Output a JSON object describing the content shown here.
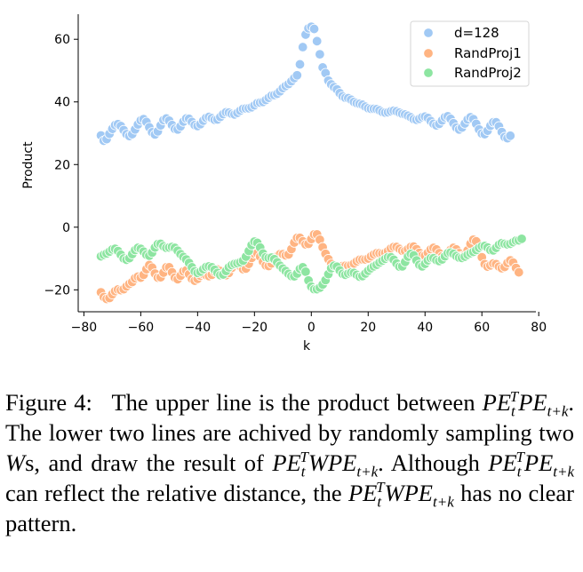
{
  "chart_data": {
    "type": "scatter",
    "xlabel": "k",
    "ylabel": "Product",
    "xlim": [
      -82,
      79
    ],
    "ylim": [
      -27,
      68
    ],
    "xticks": [
      -80,
      -60,
      -40,
      -20,
      0,
      20,
      40,
      60,
      80
    ],
    "xtick_labels": [
      "−80",
      "−60",
      "−40",
      "−20",
      "0",
      "20",
      "40",
      "60",
      "80"
    ],
    "yticks": [
      -20,
      0,
      20,
      40,
      60
    ],
    "ytick_labels": [
      "−20",
      "0",
      "20",
      "40",
      "60"
    ],
    "legend_position": "top-right",
    "x": [
      -74,
      -73,
      -72,
      -71,
      -70,
      -69,
      -68,
      -67,
      -66,
      -65,
      -64,
      -63,
      -62,
      -61,
      -60,
      -59,
      -58,
      -57,
      -56,
      -55,
      -54,
      -53,
      -52,
      -51,
      -50,
      -49,
      -48,
      -47,
      -46,
      -45,
      -44,
      -43,
      -42,
      -41,
      -40,
      -39,
      -38,
      -37,
      -36,
      -35,
      -34,
      -33,
      -32,
      -31,
      -30,
      -29,
      -28,
      -27,
      -26,
      -25,
      -24,
      -23,
      -22,
      -21,
      -20,
      -19,
      -18,
      -17,
      -16,
      -15,
      -14,
      -13,
      -12,
      -11,
      -10,
      -9,
      -8,
      -7,
      -6,
      -5,
      -4,
      -3,
      -2,
      -1,
      0,
      1,
      2,
      3,
      4,
      5,
      6,
      7,
      8,
      9,
      10,
      11,
      12,
      13,
      14,
      15,
      16,
      17,
      18,
      19,
      20,
      21,
      22,
      23,
      24,
      25,
      26,
      27,
      28,
      29,
      30,
      31,
      32,
      33,
      34,
      35,
      36,
      37,
      38,
      39,
      40,
      41,
      42,
      43,
      44,
      45,
      46,
      47,
      48,
      49,
      50,
      51,
      52,
      53,
      54,
      55,
      56,
      57,
      58,
      59,
      60,
      61,
      62,
      63,
      64,
      65,
      66,
      67,
      68,
      69,
      70,
      71,
      72,
      73,
      74
    ],
    "series": [
      {
        "name": "d=128",
        "color": "#a1c9f4",
        "values": [
          29.3,
          27.6,
          28.1,
          29.8,
          31.4,
          32.6,
          32.9,
          32.3,
          31.0,
          29.7,
          29.1,
          29.7,
          31.2,
          32.8,
          34.1,
          34.5,
          33.6,
          31.9,
          30.3,
          29.6,
          30.6,
          32.5,
          34.2,
          34.7,
          34.0,
          32.6,
          31.4,
          31.2,
          32.2,
          33.7,
          34.7,
          34.6,
          33.6,
          32.6,
          32.3,
          32.9,
          34.0,
          34.9,
          35.2,
          34.8,
          34.3,
          34.4,
          35.2,
          36.1,
          36.7,
          36.6,
          36.2,
          36.0,
          36.5,
          37.2,
          37.8,
          37.9,
          38.0,
          38.3,
          38.9,
          39.6,
          39.8,
          40.0,
          40.6,
          41.3,
          42.0,
          42.2,
          42.6,
          43.4,
          44.4,
          45.1,
          45.7,
          46.6,
          47.6,
          48.5,
          52.0,
          57.5,
          61.5,
          63.5,
          64.0,
          63.3,
          59.4,
          55.2,
          51.0,
          49.2,
          46.8,
          45.6,
          44.7,
          44.0,
          42.8,
          41.8,
          41.3,
          41.2,
          40.7,
          40.0,
          39.6,
          39.4,
          39.1,
          38.5,
          38.0,
          37.8,
          37.8,
          37.7,
          37.3,
          36.8,
          36.6,
          36.7,
          37.0,
          37.2,
          37.0,
          36.6,
          36.2,
          36.0,
          35.6,
          35.1,
          34.5,
          34.3,
          34.6,
          35.1,
          35.3,
          34.9,
          33.9,
          33.0,
          32.5,
          33.0,
          34.1,
          35.1,
          35.4,
          34.6,
          33.2,
          31.8,
          31.2,
          31.8,
          33.1,
          34.4,
          35.1,
          34.5,
          33.0,
          31.2,
          29.9,
          29.7,
          30.8,
          32.4,
          33.5,
          33.5,
          32.2,
          30.4,
          28.8,
          28.4,
          29.2
        ]
      },
      {
        "name": "RandProj1",
        "color": "#ffb482",
        "values": [
          -20.8,
          -22.3,
          -22.9,
          -22.6,
          -21.4,
          -20.4,
          -19.9,
          -20.1,
          -19.8,
          -18.9,
          -18.1,
          -17.5,
          -16.3,
          -15.8,
          -16.1,
          -15.2,
          -13.4,
          -12.1,
          -12.9,
          -14.8,
          -16.1,
          -16.0,
          -14.5,
          -12.8,
          -12.8,
          -14.4,
          -16.1,
          -16.6,
          -15.5,
          -14.1,
          -13.8,
          -15.0,
          -16.5,
          -17.1,
          -16.5,
          -15.5,
          -15.0,
          -15.3,
          -15.6,
          -15.2,
          -14.2,
          -13.5,
          -14.0,
          -14.9,
          -15.3,
          -14.6,
          -13.0,
          -11.6,
          -11.4,
          -12.4,
          -13.4,
          -13.2,
          -11.7,
          -9.8,
          -8.4,
          -8.3,
          -9.4,
          -11.0,
          -12.2,
          -12.4,
          -11.6,
          -10.4,
          -9.3,
          -8.6,
          -8.6,
          -9.0,
          -8.7,
          -7.0,
          -4.9,
          -3.4,
          -3.4,
          -4.5,
          -5.5,
          -5.3,
          -3.8,
          -2.3,
          -2.3,
          -4.0,
          -6.4,
          -8.5,
          -10.2,
          -11.7,
          -12.7,
          -13.0,
          -12.9,
          -12.4,
          -12.3,
          -12.3,
          -12.1,
          -11.6,
          -10.9,
          -10.4,
          -10.3,
          -10.3,
          -10.0,
          -9.3,
          -8.7,
          -8.3,
          -8.3,
          -8.4,
          -8.2,
          -7.6,
          -6.8,
          -6.3,
          -6.3,
          -6.9,
          -7.5,
          -7.6,
          -7.0,
          -6.3,
          -6.2,
          -7.0,
          -8.2,
          -9.1,
          -9.1,
          -8.2,
          -7.1,
          -6.6,
          -7.1,
          -8.3,
          -9.3,
          -9.4,
          -8.5,
          -7.2,
          -6.6,
          -7.1,
          -8.3,
          -9.2,
          -8.9,
          -7.4,
          -5.3,
          -4.0,
          -4.5,
          -6.7,
          -9.6,
          -11.8,
          -12.6,
          -12.2,
          -11.6,
          -11.8,
          -12.6,
          -13.1,
          -12.7,
          -11.4,
          -10.6,
          -11.3,
          -13.0,
          -14.4
        ]
      },
      {
        "name": "RandProj2",
        "color": "#8de5a1",
        "values": [
          -9.3,
          -8.8,
          -8.4,
          -7.8,
          -7.1,
          -6.9,
          -7.6,
          -8.8,
          -10.0,
          -10.4,
          -9.9,
          -8.6,
          -7.3,
          -6.6,
          -6.9,
          -7.8,
          -8.8,
          -9.1,
          -8.1,
          -6.5,
          -5.4,
          -5.3,
          -6.1,
          -6.6,
          -6.5,
          -6.3,
          -6.6,
          -7.5,
          -8.6,
          -9.5,
          -10.3,
          -11.4,
          -12.8,
          -14.1,
          -14.6,
          -14.2,
          -13.4,
          -12.7,
          -12.5,
          -12.8,
          -13.6,
          -14.6,
          -15.3,
          -15.1,
          -14.0,
          -12.8,
          -12.1,
          -11.7,
          -11.5,
          -11.2,
          -10.7,
          -9.4,
          -7.6,
          -5.7,
          -4.6,
          -5.0,
          -6.5,
          -8.4,
          -9.6,
          -9.8,
          -9.7,
          -10.2,
          -11.2,
          -12.3,
          -13.2,
          -14.0,
          -14.9,
          -15.6,
          -15.7,
          -14.8,
          -13.3,
          -12.8,
          -14.2,
          -17.0,
          -19.0,
          -19.8,
          -19.8,
          -19.3,
          -18.3,
          -16.9,
          -15.0,
          -13.1,
          -12.3,
          -12.6,
          -13.8,
          -14.9,
          -15.2,
          -14.8,
          -14.5,
          -14.6,
          -15.2,
          -15.8,
          -15.6,
          -14.8,
          -13.9,
          -13.1,
          -12.5,
          -12.0,
          -11.3,
          -10.7,
          -10.1,
          -9.6,
          -9.6,
          -10.4,
          -11.6,
          -12.6,
          -12.5,
          -11.1,
          -9.4,
          -8.5,
          -9.0,
          -10.6,
          -12.0,
          -12.5,
          -11.7,
          -10.6,
          -9.9,
          -9.9,
          -10.5,
          -10.8,
          -10.3,
          -9.3,
          -8.3,
          -8.1,
          -8.5,
          -9.2,
          -9.7,
          -9.8,
          -9.4,
          -8.8,
          -8.3,
          -7.9,
          -7.3,
          -6.6,
          -6.1,
          -6.0,
          -6.5,
          -7.3,
          -7.4,
          -6.6,
          -5.6,
          -5.1,
          -5.3,
          -5.5,
          -5.3,
          -4.8,
          -4.3,
          -4.2,
          -3.7
        ]
      }
    ]
  },
  "caption": {
    "label": "Figure 4:",
    "t1": "The upper line is the product between",
    "t2": ". The lower two lines are achived by randomly sampling two",
    "t3": "s, and draw the result of",
    "t4": ". Although",
    "t5": "can reflect the relative distance, the",
    "t6": "has no clear pattern.",
    "sym_PE": "PE",
    "sym_W": "W",
    "sym_T": "T",
    "sym_t": "t",
    "sym_tk": "t+k"
  }
}
